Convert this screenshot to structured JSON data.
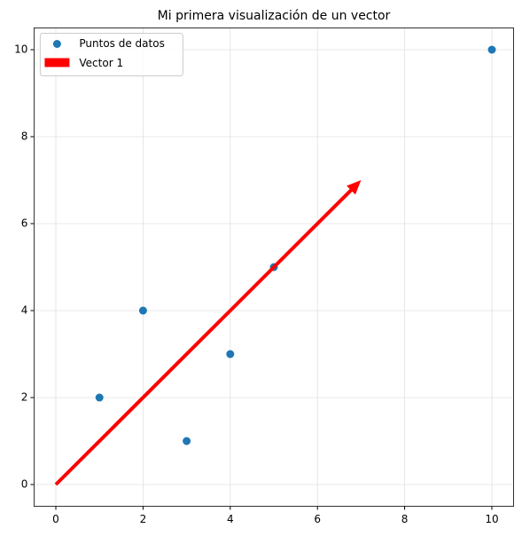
{
  "chart_data": {
    "type": "scatter",
    "title": "Mi primera visualización de un vector",
    "series": [
      {
        "name": "Puntos de datos",
        "color": "#1f77b4",
        "x": [
          1,
          2,
          3,
          4,
          5,
          10
        ],
        "values": [
          2,
          4,
          1,
          3,
          5,
          10
        ]
      }
    ],
    "vector": {
      "name": "Vector 1",
      "color": "#ff0000",
      "x": [
        0,
        7
      ],
      "values": [
        0,
        7
      ]
    },
    "xlim": [
      -0.5,
      10.5
    ],
    "ylim": [
      -0.5,
      10.5
    ],
    "xticks": [
      0,
      2,
      4,
      6,
      8,
      10
    ],
    "yticks": [
      0,
      2,
      4,
      6,
      8,
      10
    ],
    "grid": true,
    "legend": "upper-left"
  }
}
